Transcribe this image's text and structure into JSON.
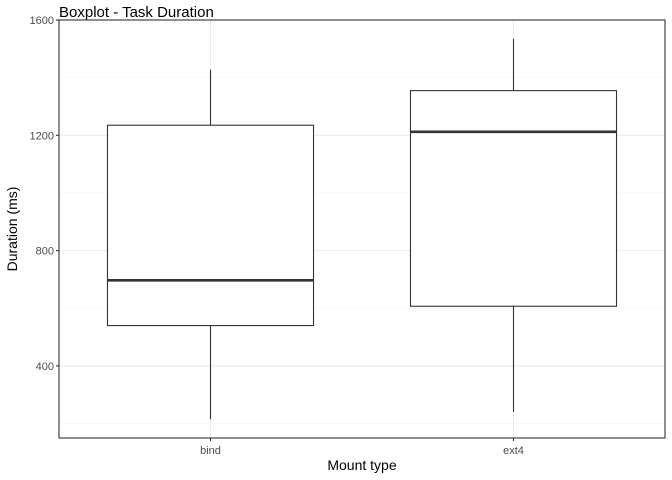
{
  "chart_data": {
    "type": "boxplot",
    "title": "Boxplot - Task Duration",
    "xlabel": "Mount type",
    "ylabel": "Duration (ms)",
    "categories": [
      "bind",
      "ext4"
    ],
    "boxes": [
      {
        "category": "bind",
        "whisker_low": 215,
        "q1": 540,
        "median": 697,
        "q3": 1235,
        "whisker_high": 1428
      },
      {
        "category": "ext4",
        "whisker_low": 240,
        "q1": 607,
        "median": 1212,
        "q3": 1355,
        "whisker_high": 1535
      }
    ],
    "ylim": [
      150,
      1600
    ],
    "yticks": [
      400,
      800,
      1200,
      1600
    ],
    "ytick_labels": [
      "400",
      "800",
      "1200",
      "1600"
    ],
    "grid": true,
    "colors": {
      "box_fill": "#ffffff",
      "box_stroke": "#333333",
      "grid_major": "#ebebeb",
      "grid_minor": "#f5f5f5",
      "panel_border": "#333333"
    }
  }
}
